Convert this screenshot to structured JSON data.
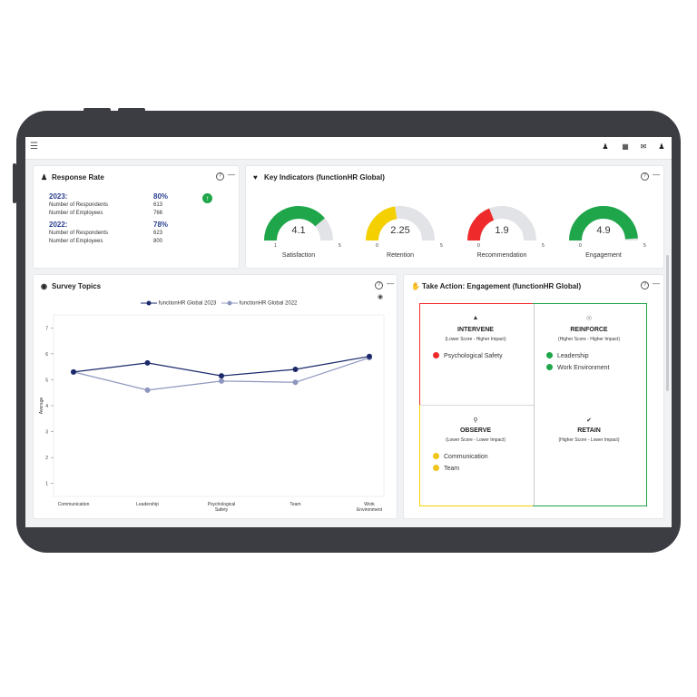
{
  "colors": {
    "navy": "#1c2a6b",
    "light_series": "#8d97bd",
    "green": "#1fa64a",
    "yellow": "#f5d000",
    "red": "#ee2a2a",
    "track": "#e2e3e6"
  },
  "topbar": {
    "menu_icon": "hamburger-icon",
    "icons": [
      "add-user-icon",
      "book-icon",
      "mail-icon",
      "user-icon"
    ]
  },
  "response_rate": {
    "title": "Response Rate",
    "y2023": {
      "year": "2023:",
      "pct": "80%",
      "respondents_label": "Number of Respondents",
      "respondents": "613",
      "employees_label": "Number of Employees",
      "employees": "766"
    },
    "y2022": {
      "year": "2022:",
      "pct": "78%",
      "respondents_label": "Number of Respondents",
      "respondents": "623",
      "employees_label": "Number of Employees",
      "employees": "800"
    }
  },
  "key_indicators": {
    "title": "Key Indicators (functionHR Global)",
    "gauges": [
      {
        "label": "Satisfaction",
        "value": "4.1",
        "value_num": 4.1,
        "min": "1",
        "max": "5",
        "min_num": 1,
        "max_num": 5,
        "color": "#1fa64a"
      },
      {
        "label": "Retention",
        "value": "2.25",
        "value_num": 2.25,
        "min": "0",
        "max": "5",
        "min_num": 0,
        "max_num": 5,
        "color": "#f5d000"
      },
      {
        "label": "Recommendation",
        "value": "1.9",
        "value_num": 1.9,
        "min": "0",
        "max": "5",
        "min_num": 0,
        "max_num": 5,
        "color": "#ee2a2a"
      },
      {
        "label": "Engagement",
        "value": "4.9",
        "value_num": 4.9,
        "min": "0",
        "max": "5",
        "min_num": 0,
        "max_num": 5,
        "color": "#1fa64a"
      }
    ]
  },
  "survey_topics": {
    "title": "Survey Topics",
    "chart_data": {
      "type": "line",
      "title": "",
      "xlabel": "",
      "ylabel": "Average",
      "categories": [
        "Communication",
        "Leadership",
        "Psychological Safety",
        "Team",
        "Work Environment"
      ],
      "ylim": [
        0.5,
        7.5
      ],
      "yticks": [
        "1",
        "2",
        "3",
        "4",
        "5",
        "6",
        "7"
      ],
      "series": [
        {
          "name": "functionHR Global 2023",
          "values": [
            5.3,
            5.65,
            5.15,
            5.4,
            5.9
          ],
          "color": "#1c2a6b"
        },
        {
          "name": "functionHR Global 2022",
          "values": [
            5.3,
            4.6,
            4.95,
            4.9,
            5.85
          ],
          "color": "#8d97bd"
        }
      ],
      "legend": "top-center",
      "grid": false
    }
  },
  "take_action": {
    "title": "Take Action: Engagement (functionHR Global)",
    "quadrants": {
      "intervene": {
        "title": "INTERVENE",
        "subtitle": "(Lower Score - Higher Impact)",
        "icon": "fire-icon",
        "items": [
          "Psychological Safety"
        ]
      },
      "reinforce": {
        "title": "REINFORCE",
        "subtitle": "(Higher Score - Higher Impact)",
        "icon": "handshake-icon",
        "items": [
          "Leadership",
          "Work Environment"
        ]
      },
      "observe": {
        "title": "OBSERVE",
        "subtitle": "(Lower Score - Lower Impact)",
        "icon": "magnifier-icon",
        "items": [
          "Communication",
          "Team"
        ]
      },
      "retain": {
        "title": "RETAIN",
        "subtitle": "(Higher Score - Lower Impact)",
        "icon": "checkmark-icon",
        "items": []
      }
    }
  }
}
